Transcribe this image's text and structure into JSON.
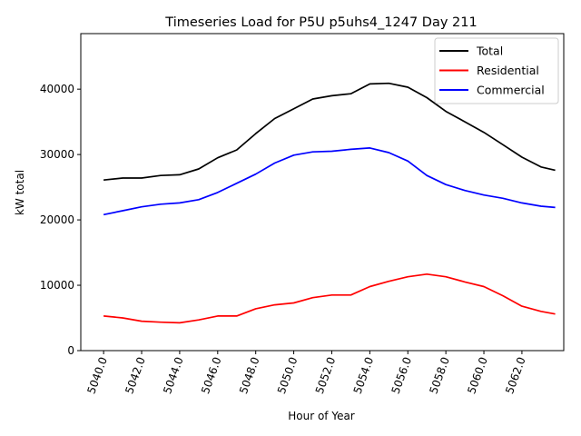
{
  "chart_data": {
    "type": "line",
    "title": "Timeseries Load for P5U p5uhs4_1247  Day 211",
    "xlabel": "Hour of Year",
    "ylabel": "kW total",
    "xlim": [
      5038.8,
      5064.2
    ],
    "ylim": [
      0,
      48500
    ],
    "x_ticks": [
      5040,
      5042,
      5044,
      5046,
      5048,
      5050,
      5052,
      5054,
      5056,
      5058,
      5060,
      5062
    ],
    "x_tick_labels": [
      "5040.0",
      "5042.0",
      "5044.0",
      "5046.0",
      "5048.0",
      "5050.0",
      "5052.0",
      "5054.0",
      "5056.0",
      "5058.0",
      "5060.0",
      "5062.0"
    ],
    "y_ticks": [
      0,
      10000,
      20000,
      30000,
      40000
    ],
    "y_tick_labels": [
      "0",
      "10000",
      "20000",
      "30000",
      "40000"
    ],
    "legend_position": "top-right",
    "x": [
      5040,
      5041,
      5042,
      5043,
      5044,
      5045,
      5046,
      5047,
      5048,
      5049,
      5050,
      5051,
      5052,
      5053,
      5054,
      5055,
      5056,
      5057,
      5058,
      5059,
      5060,
      5061,
      5062,
      5063,
      5063.75
    ],
    "series": [
      {
        "name": "Total",
        "color": "#000000",
        "values": [
          26100,
          26400,
          26400,
          26800,
          26900,
          27800,
          29500,
          30700,
          33200,
          35500,
          37000,
          38500,
          39000,
          39300,
          40800,
          40900,
          40300,
          38700,
          36600,
          35000,
          33400,
          31500,
          29600,
          28100,
          27600
        ]
      },
      {
        "name": "Residential",
        "color": "#ff0000",
        "values": [
          5300,
          5000,
          4500,
          4350,
          4250,
          4700,
          5300,
          5300,
          6400,
          7000,
          7300,
          8100,
          8500,
          8500,
          9800,
          10600,
          11300,
          11700,
          11300,
          10500,
          9800,
          8400,
          6800,
          6000,
          5600
        ]
      },
      {
        "name": "Commercial",
        "color": "#0000ff",
        "values": [
          20800,
          21400,
          22000,
          22400,
          22600,
          23100,
          24200,
          25600,
          27000,
          28700,
          29900,
          30400,
          30500,
          30800,
          31000,
          30300,
          29000,
          26800,
          25400,
          24500,
          23800,
          23300,
          22600,
          22100,
          21900
        ]
      }
    ]
  }
}
